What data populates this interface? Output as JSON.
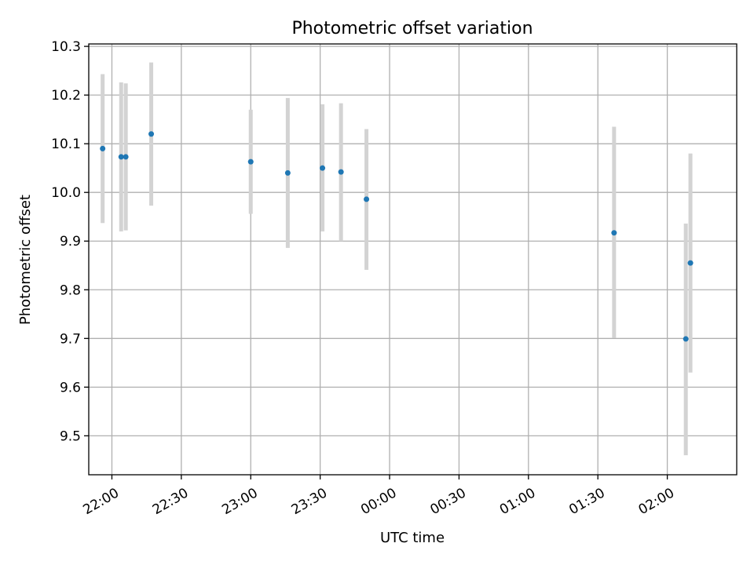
{
  "chart_data": {
    "type": "scatter",
    "title": "Photometric offset variation",
    "xlabel": "UTC time",
    "ylabel": "Photometric offset",
    "grid": true,
    "ylim": [
      9.42,
      10.305
    ],
    "xlim": [
      "21:50",
      "02:30"
    ],
    "y_ticks": [
      "9.5",
      "9.6",
      "9.7",
      "9.8",
      "9.9",
      "10.0",
      "10.1",
      "10.2",
      "10.3"
    ],
    "x_ticks": [
      "22:00",
      "22:30",
      "23:00",
      "23:30",
      "00:00",
      "00:30",
      "01:00",
      "01:30",
      "02:00"
    ],
    "colors": {
      "point": "#1f77b4",
      "errorbar": "#d3d3d3",
      "grid": "#b0b0b0"
    },
    "points": [
      {
        "x": "21:56",
        "y": 10.09,
        "err_low": 9.937,
        "err_high": 10.243
      },
      {
        "x": "22:04",
        "y": 10.073,
        "err_low": 9.92,
        "err_high": 10.226
      },
      {
        "x": "22:06",
        "y": 10.073,
        "err_low": 9.922,
        "err_high": 10.224
      },
      {
        "x": "22:17",
        "y": 10.12,
        "err_low": 9.973,
        "err_high": 10.267
      },
      {
        "x": "23:00",
        "y": 10.063,
        "err_low": 9.956,
        "err_high": 10.17
      },
      {
        "x": "23:16",
        "y": 10.04,
        "err_low": 9.886,
        "err_high": 10.194
      },
      {
        "x": "23:31",
        "y": 10.05,
        "err_low": 9.92,
        "err_high": 10.181
      },
      {
        "x": "23:39",
        "y": 10.042,
        "err_low": 9.9,
        "err_high": 10.183
      },
      {
        "x": "23:50",
        "y": 9.986,
        "err_low": 9.841,
        "err_high": 10.13
      },
      {
        "x": "01:37",
        "y": 9.917,
        "err_low": 9.701,
        "err_high": 10.135
      },
      {
        "x": "02:08",
        "y": 9.699,
        "err_low": 9.46,
        "err_high": 9.936
      },
      {
        "x": "02:10",
        "y": 9.855,
        "err_low": 9.63,
        "err_high": 10.08
      }
    ]
  }
}
